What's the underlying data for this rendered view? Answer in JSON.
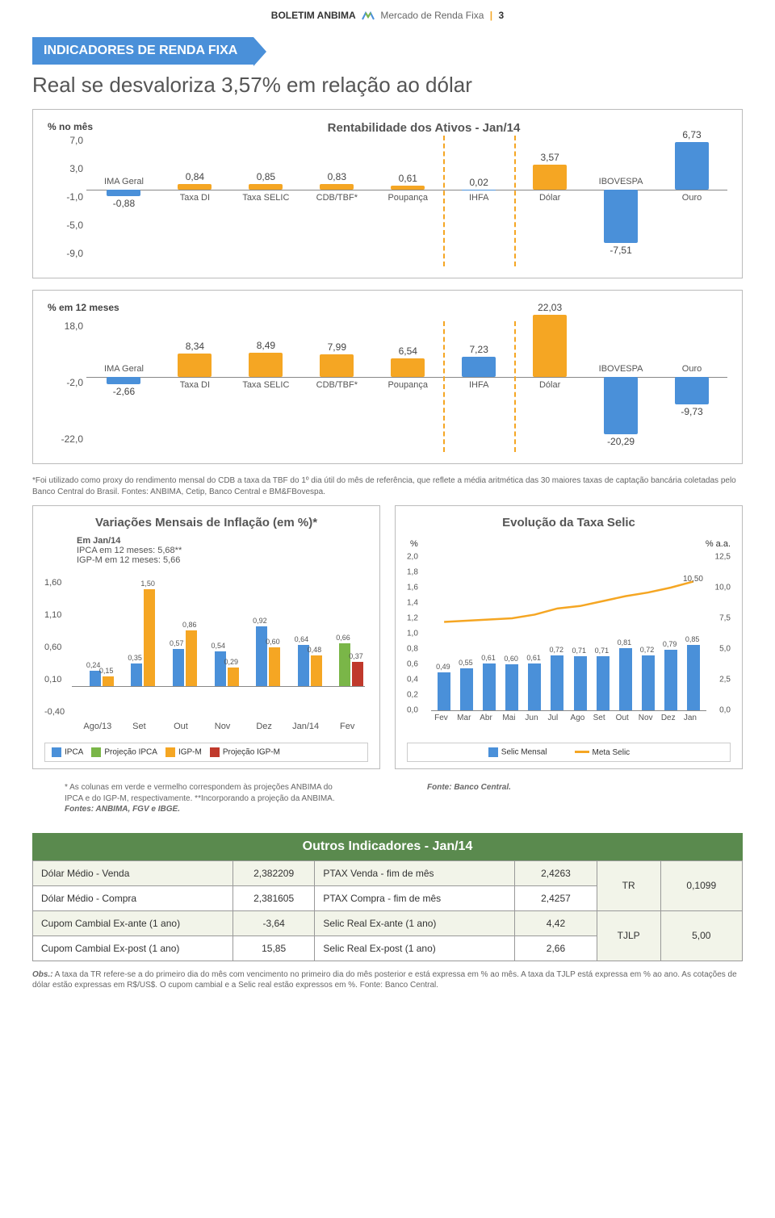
{
  "header": {
    "boletim": "BOLETIM ANBIMA",
    "right": "Mercado de Renda Fixa",
    "page": "3"
  },
  "section_banner": "INDICADORES DE RENDA FIXA",
  "subtitle": "Real se desvaloriza 3,57% em relação ao dólar",
  "colors": {
    "blue": "#4a90d9",
    "orange": "#f5a623",
    "green": "#7ab648",
    "red": "#c0392b",
    "dashed": "#f5a623"
  },
  "chart1": {
    "title": "Rentabilidade dos Ativos - Jan/14",
    "ylabel": "% no mês",
    "yticks": [
      7.0,
      3.0,
      -1.0,
      -5.0,
      -9.0
    ],
    "ymin": -9.0,
    "ymax": 7.0,
    "categories": [
      "IMA Geral",
      "Taxa DI",
      "Taxa SELIC",
      "CDB/TBF*",
      "Poupança",
      "IHFA",
      "Dólar",
      "IBOVESPA",
      "Ouro"
    ],
    "values": [
      -0.88,
      0.84,
      0.85,
      0.83,
      0.61,
      0.02,
      3.57,
      -7.51,
      6.73
    ],
    "labels": [
      "-0,88",
      "0,84",
      "0,85",
      "0,83",
      "0,61",
      "0,02",
      "3,57",
      "-7,51",
      "6,73"
    ],
    "colors": [
      "#4a90d9",
      "#f5a623",
      "#f5a623",
      "#f5a623",
      "#f5a623",
      "#4a90d9",
      "#f5a623",
      "#4a90d9",
      "#4a90d9"
    ],
    "sep_after": [
      4,
      5
    ]
  },
  "chart2": {
    "ylabel": "% em 12 meses",
    "yticks": [
      18.0,
      -2.0,
      -22.0
    ],
    "ymin": -22.0,
    "ymax": 18.0,
    "categories": [
      "IMA Geral",
      "Taxa DI",
      "Taxa SELIC",
      "CDB/TBF*",
      "Poupança",
      "IHFA",
      "Dólar",
      "IBOVESPA",
      "Ouro"
    ],
    "values": [
      -2.66,
      8.34,
      8.49,
      7.99,
      6.54,
      7.23,
      22.03,
      -20.29,
      -9.73
    ],
    "labels": [
      "-2,66",
      "8,34",
      "8,49",
      "7,99",
      "6,54",
      "7,23",
      "22,03",
      "-20,29",
      "-9,73"
    ],
    "colors": [
      "#4a90d9",
      "#f5a623",
      "#f5a623",
      "#f5a623",
      "#f5a623",
      "#4a90d9",
      "#f5a623",
      "#4a90d9",
      "#4a90d9"
    ],
    "sep_after": [
      4,
      5
    ]
  },
  "footnote1": "*Foi utilizado como proxy do rendimento mensal do CDB a taxa da TBF do 1º dia útil do mês de referência, que reflete a média aritmética das 30 maiores taxas de captação bancária coletadas pelo Banco Central do Brasil. Fontes: ANBIMA, Cetip, Banco Central e BM&FBovespa.",
  "inflation": {
    "title": "Variações Mensais de Inflação (em %)*",
    "sub1": "Em Jan/14",
    "sub2": "IPCA em 12 meses: 5,68**",
    "sub3": "IGP-M em 12 meses: 5,66",
    "yticks": [
      "1,60",
      "1,10",
      "0,60",
      "0,10",
      "-0,40"
    ],
    "ymin": -0.4,
    "ymax": 1.6,
    "months": [
      "Ago/13",
      "Set",
      "Out",
      "Nov",
      "Dez",
      "Jan/14",
      "Fev"
    ],
    "series": [
      {
        "vals": [
          0.24,
          0.35,
          0.57,
          0.54,
          0.92,
          0.64,
          0.66
        ],
        "color": "#4a90d9"
      },
      {
        "vals": [
          0.15,
          1.5,
          0.86,
          0.29,
          0.6,
          0.48,
          0.37
        ],
        "color": "#f5a623"
      }
    ],
    "proj": {
      "ipca_idx": 6,
      "ipca_color": "#7ab648",
      "igpm_idx": 6,
      "igpm_color": "#c0392b"
    },
    "value_labels": [
      [
        "0,24",
        "0,15"
      ],
      [
        "0,35",
        "1,50"
      ],
      [
        "0,57",
        "0,86"
      ],
      [
        "0,54",
        "0,29"
      ],
      [
        "0,92",
        "0,60"
      ],
      [
        "0,64",
        "0,48"
      ],
      [
        "0,66",
        "0,37"
      ]
    ],
    "legend": [
      {
        "color": "#4a90d9",
        "label": "IPCA"
      },
      {
        "color": "#7ab648",
        "label": "Projeção IPCA"
      },
      {
        "color": "#f5a623",
        "label": "IGP-M"
      },
      {
        "color": "#c0392b",
        "label": "Projeção IGP-M"
      }
    ]
  },
  "selic": {
    "title": "Evolução da Taxa Selic",
    "left_label": "%",
    "right_label": "% a.a.",
    "left_ticks": [
      "2,0",
      "1,8",
      "1,6",
      "1,4",
      "1,2",
      "1,0",
      "0,8",
      "0,6",
      "0,4",
      "0,2",
      "0,0"
    ],
    "right_ticks": [
      "12,5",
      "10,0",
      "7,5",
      "5,0",
      "2,5",
      "0,0"
    ],
    "left_min": 0,
    "left_max": 2.0,
    "right_min": 0,
    "right_max": 12.5,
    "months": [
      "Fev",
      "Mar",
      "Abr",
      "Mai",
      "Jun",
      "Jul",
      "Ago",
      "Set",
      "Out",
      "Nov",
      "Dez",
      "Jan"
    ],
    "bars": [
      0.49,
      0.55,
      0.61,
      0.6,
      0.61,
      0.72,
      0.71,
      0.71,
      0.81,
      0.72,
      0.79,
      0.85
    ],
    "bar_labels": [
      "0,49",
      "0,55",
      "0,61",
      "0,60",
      "0,61",
      "0,72",
      "0,71",
      "0,71",
      "0,81",
      "0,72",
      "0,79",
      "0,85"
    ],
    "bar_color": "#4a90d9",
    "line": [
      7.2,
      7.3,
      7.4,
      7.5,
      7.8,
      8.3,
      8.5,
      8.9,
      9.3,
      9.6,
      10.0,
      10.5
    ],
    "line_label": "10,50",
    "line_color": "#f5a623",
    "legend": [
      {
        "type": "sq",
        "color": "#4a90d9",
        "label": "Selic Mensal"
      },
      {
        "type": "line",
        "color": "#f5a623",
        "label": "Meta Selic"
      }
    ]
  },
  "footnote2": "* As colunas em verde e vermelho correspondem às projeções ANBIMA do IPCA e do IGP-M, respectivamente. **Incorporando a projeção da ANBIMA.",
  "footnote2_src": "Fontes: ANBIMA, FGV e IBGE.",
  "footnote3": "Fonte: Banco Central.",
  "table_title": "Outros Indicadores - Jan/14",
  "table": [
    [
      {
        "l": "Dólar Médio - Venda",
        "v": "2,382209"
      },
      {
        "l": "PTAX Venda - fim de mês",
        "v": "2,4263"
      },
      {
        "l": "TR",
        "v": "0,1099",
        "rs": 2
      }
    ],
    [
      {
        "l": "Dólar Médio - Compra",
        "v": "2,381605"
      },
      {
        "l": "PTAX Compra - fim de mês",
        "v": "2,4257"
      }
    ],
    [
      {
        "l": "Cupom Cambial Ex-ante (1 ano)",
        "v": "-3,64"
      },
      {
        "l": "Selic Real Ex-ante (1 ano)",
        "v": "4,42"
      },
      {
        "l": "TJLP",
        "v": "5,00",
        "rs": 2
      }
    ],
    [
      {
        "l": "Cupom Cambial Ex-post (1 ano)",
        "v": "15,85"
      },
      {
        "l": "Selic Real Ex-post (1 ano)",
        "v": "2,66"
      }
    ]
  ],
  "obs": "Obs.: A taxa da TR refere-se a do primeiro dia do mês com vencimento no primeiro dia do mês posterior e está expressa em % ao mês. A taxa da TJLP está expressa em % ao ano. As cotações de dólar estão expressas em R$/US$. O cupom cambial e a Selic real estão expressos em %. Fonte: Banco Central."
}
